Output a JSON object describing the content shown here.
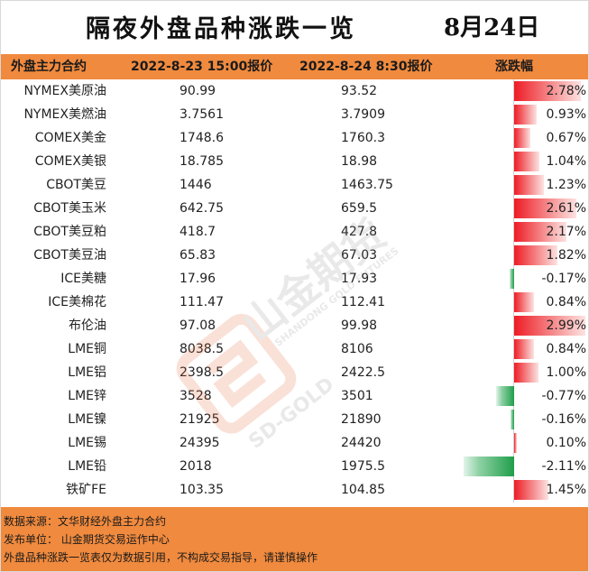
{
  "title": "隔夜外盘品种涨跌一览",
  "date": "8月24日",
  "header": {
    "col_name": "外盘主力合约",
    "col_price1": "2022-8-23 15:00报价",
    "col_price2": "2022-8-24 8:30报价",
    "col_change": "涨跌幅"
  },
  "rows": [
    {
      "name": "NYMEX美原油",
      "price1": "90.99",
      "price2": "93.52",
      "change": "2.78%",
      "change_value": 2.78
    },
    {
      "name": "NYMEX美燃油",
      "price1": "3.7561",
      "price2": "3.7909",
      "change": "0.93%",
      "change_value": 0.93
    },
    {
      "name": "COMEX美金",
      "price1": "1748.6",
      "price2": "1760.3",
      "change": "0.67%",
      "change_value": 0.67
    },
    {
      "name": "COMEX美银",
      "price1": "18.785",
      "price2": "18.98",
      "change": "1.04%",
      "change_value": 1.04
    },
    {
      "name": "CBOT美豆",
      "price1": "1446",
      "price2": "1463.75",
      "change": "1.23%",
      "change_value": 1.23
    },
    {
      "name": "CBOT美玉米",
      "price1": "642.75",
      "price2": "659.5",
      "change": "2.61%",
      "change_value": 2.61
    },
    {
      "name": "CBOT美豆粕",
      "price1": "418.7",
      "price2": "427.8",
      "change": "2.17%",
      "change_value": 2.17
    },
    {
      "name": "CBOT美豆油",
      "price1": "65.83",
      "price2": "67.03",
      "change": "1.82%",
      "change_value": 1.82
    },
    {
      "name": "ICE美糖",
      "price1": "17.96",
      "price2": "17.93",
      "change": "-0.17%",
      "change_value": -0.17
    },
    {
      "name": "ICE美棉花",
      "price1": "111.47",
      "price2": "112.41",
      "change": "0.84%",
      "change_value": 0.84
    },
    {
      "name": "布伦油",
      "price1": "97.08",
      "price2": "99.98",
      "change": "2.99%",
      "change_value": 2.99
    },
    {
      "name": "LME铜",
      "price1": "8038.5",
      "price2": "8106",
      "change": "0.84%",
      "change_value": 0.84
    },
    {
      "name": "LME铝",
      "price1": "2398.5",
      "price2": "2422.5",
      "change": "1.00%",
      "change_value": 1.0
    },
    {
      "name": "LME锌",
      "price1": "3528",
      "price2": "3501",
      "change": "-0.77%",
      "change_value": -0.77
    },
    {
      "name": "LME镍",
      "price1": "21925",
      "price2": "21890",
      "change": "-0.16%",
      "change_value": -0.16
    },
    {
      "name": "LME锡",
      "price1": "24395",
      "price2": "24420",
      "change": "0.10%",
      "change_value": 0.1
    },
    {
      "name": "LME铅",
      "price1": "2018",
      "price2": "1975.5",
      "change": "-2.11%",
      "change_value": -2.11
    },
    {
      "name": "铁矿FE",
      "price1": "103.35",
      "price2": "104.85",
      "change": "1.45%",
      "change_value": 1.45
    }
  ],
  "footer": {
    "line1": "数据来源：文华财经外盘主力合约",
    "line2": "发布单位：  山金期货交易运作中心",
    "line3": "外盘品种涨跌一览表仅为数据引用，不构成交易指导，请谨慎操作"
  },
  "watermark": {
    "text_cn": "山金期货",
    "text_en": "SHANDONG GOLD FUTURES",
    "text_logo": "SD-GOLD"
  },
  "colors": {
    "header_bg": "#f08a3e",
    "footer_bg": "#f08a3e",
    "up_bar": "#ee1c25",
    "down_bar": "#1f9e4a"
  }
}
